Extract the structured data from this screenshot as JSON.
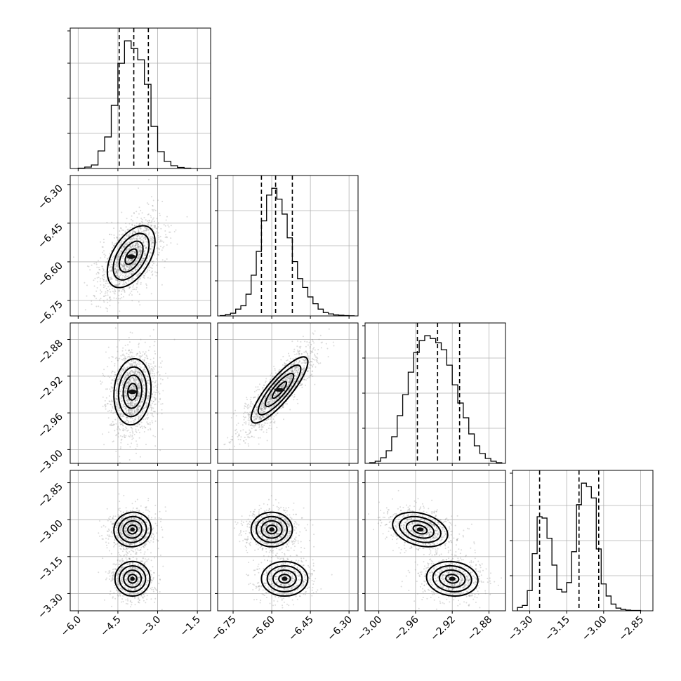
{
  "chart_data": {
    "type": "corner",
    "parameters": 4,
    "grid": true,
    "axes": [
      {
        "range": [
          -6.3,
          -1.0
        ],
        "ticks": [
          -6.0,
          -4.5,
          -3.0,
          -1.5
        ],
        "tick_labels": [
          "−6.0",
          "−4.5",
          "−3.0",
          "−1.5"
        ],
        "quantiles": [
          -4.45,
          -3.9,
          -3.35
        ]
      },
      {
        "range": [
          -6.81,
          -6.265
        ],
        "ticks": [
          -6.75,
          -6.6,
          -6.45,
          -6.3
        ],
        "tick_labels": [
          "−6.75",
          "−6.60",
          "−6.45",
          "−6.30"
        ],
        "quantiles": [
          -6.64,
          -6.585,
          -6.52
        ]
      },
      {
        "range": [
          -3.015,
          -2.862
        ],
        "ticks": [
          -3.0,
          -2.96,
          -2.92,
          -2.88
        ],
        "tick_labels": [
          "−3.00",
          "−2.96",
          "−2.92",
          "−2.88"
        ],
        "quantiles": [
          -2.958,
          -2.936,
          -2.912
        ]
      },
      {
        "range": [
          -3.37,
          -2.8
        ],
        "ticks": [
          -3.3,
          -3.15,
          -3.0,
          -2.85
        ],
        "tick_labels": [
          "−3.30",
          "−3.15",
          "−3.00",
          "−2.85"
        ],
        "quantiles": [
          -3.26,
          -3.1,
          -3.02
        ]
      }
    ],
    "histograms": [
      {
        "edges": [
          -6.0,
          -5.75,
          -5.5,
          -5.25,
          -5.0,
          -4.75,
          -4.5,
          -4.25,
          -4.0,
          -3.75,
          -3.5,
          -3.25,
          -3.0,
          -2.75,
          -2.5,
          -2.25,
          -2.0,
          -1.75
        ],
        "counts": [
          0.5,
          2,
          5,
          25,
          45,
          90,
          150,
          182,
          171,
          155,
          120,
          60,
          24,
          10,
          4,
          1.5,
          0.5
        ]
      },
      {
        "edges": [
          -6.8,
          -6.78,
          -6.76,
          -6.74,
          -6.72,
          -6.7,
          -6.68,
          -6.66,
          -6.64,
          -6.62,
          -6.6,
          -6.58,
          -6.56,
          -6.54,
          -6.52,
          -6.5,
          -6.48,
          -6.46,
          -6.44,
          -6.42,
          -6.4,
          -6.38,
          -6.36,
          -6.34,
          -6.32,
          -6.3,
          -6.28
        ],
        "counts": [
          0.5,
          2,
          4,
          10,
          15,
          32,
          60,
          95,
          140,
          178,
          188,
          172,
          150,
          115,
          80,
          55,
          42,
          28,
          18,
          10,
          5,
          3,
          1.5,
          1,
          0.5,
          0.2
        ]
      },
      {
        "edges": [
          -3.01,
          -3.004,
          -2.998,
          -2.992,
          -2.986,
          -2.98,
          -2.974,
          -2.968,
          -2.962,
          -2.956,
          -2.95,
          -2.944,
          -2.938,
          -2.932,
          -2.926,
          -2.92,
          -2.914,
          -2.908,
          -2.902,
          -2.896,
          -2.89,
          -2.884,
          -2.878,
          -2.872,
          -2.866
        ],
        "counts": [
          1,
          3,
          8,
          18,
          38,
          68,
          98,
          130,
          158,
          175,
          182,
          178,
          172,
          162,
          140,
          112,
          86,
          65,
          42,
          25,
          14,
          7,
          3,
          1
        ]
      },
      {
        "edges": [
          -3.35,
          -3.33,
          -3.31,
          -3.29,
          -3.27,
          -3.25,
          -3.23,
          -3.21,
          -3.19,
          -3.17,
          -3.15,
          -3.13,
          -3.11,
          -3.09,
          -3.07,
          -3.05,
          -3.03,
          -3.01,
          -2.99,
          -2.97,
          -2.95,
          -2.93,
          -2.91,
          -2.89,
          -2.87,
          -2.85
        ],
        "counts": [
          5,
          8,
          30,
          85,
          140,
          138,
          108,
          68,
          32,
          28,
          42,
          88,
          158,
          190,
          185,
          168,
          92,
          40,
          22,
          10,
          4,
          2,
          1,
          0.5,
          0.5
        ]
      }
    ],
    "densities": [
      {
        "row": 1,
        "col": 0,
        "modes": [
          {
            "mx": -4.0,
            "my": -6.58,
            "sx": 0.45,
            "sy": 0.06,
            "rho": 0.5,
            "w": 1
          }
        ]
      },
      {
        "row": 2,
        "col": 0,
        "modes": [
          {
            "mx": -3.95,
            "my": -2.937,
            "sx": 0.35,
            "sy": 0.018,
            "rho": 0.1,
            "w": 1
          }
        ]
      },
      {
        "row": 2,
        "col": 1,
        "modes": [
          {
            "mx": -6.57,
            "my": -2.935,
            "sx": 0.055,
            "sy": 0.018,
            "rho": 0.85,
            "w": 1
          }
        ]
      },
      {
        "row": 3,
        "col": 0,
        "modes": [
          {
            "mx": -3.95,
            "my": -3.04,
            "sx": 0.35,
            "sy": 0.035,
            "rho": 0.05,
            "w": 0.55
          },
          {
            "mx": -3.95,
            "my": -3.24,
            "sx": 0.33,
            "sy": 0.035,
            "rho": 0.0,
            "w": 0.45
          }
        ]
      },
      {
        "row": 3,
        "col": 1,
        "modes": [
          {
            "mx": -6.6,
            "my": -3.04,
            "sx": 0.04,
            "sy": 0.035,
            "rho": 0.0,
            "w": 0.55
          },
          {
            "mx": -6.55,
            "my": -3.24,
            "sx": 0.045,
            "sy": 0.035,
            "rho": 0.0,
            "w": 0.45
          }
        ]
      },
      {
        "row": 3,
        "col": 2,
        "modes": [
          {
            "mx": -2.955,
            "my": -3.04,
            "sx": 0.015,
            "sy": 0.035,
            "rho": -0.3,
            "w": 0.55
          },
          {
            "mx": -2.92,
            "my": -3.24,
            "sx": 0.014,
            "sy": 0.035,
            "rho": -0.1,
            "w": 0.45
          }
        ]
      }
    ]
  }
}
